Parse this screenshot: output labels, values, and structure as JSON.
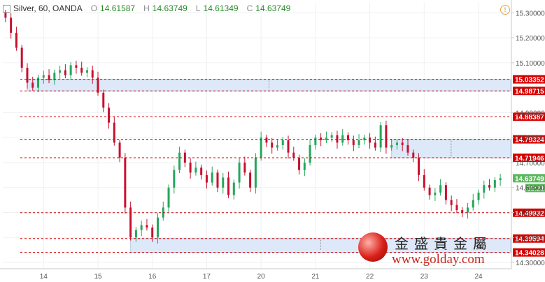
{
  "header": {
    "symbol_label": "Silver, 60, OANDA",
    "ohlc": [
      {
        "label": "O",
        "value": "14.61587"
      },
      {
        "label": "H",
        "value": "14.63749"
      },
      {
        "label": "L",
        "value": "14.61349"
      },
      {
        "label": "C",
        "value": "14.63749"
      }
    ]
  },
  "colors": {
    "up": "#26a65b",
    "down": "#c8102e",
    "level_line": "#d40000",
    "zone_fill": "#dde9f8",
    "last_price": "#5cb85c"
  },
  "watermark": {
    "chinese": "金盛貴金屬",
    "url": "www.golday.com"
  },
  "chart_data": {
    "type": "candlestick",
    "x_labels": [
      {
        "label": "14",
        "bar": 7
      },
      {
        "label": "15",
        "bar": 17
      },
      {
        "label": "16",
        "bar": 27
      },
      {
        "label": "17",
        "bar": 37
      },
      {
        "label": "20",
        "bar": 47
      },
      {
        "label": "21",
        "bar": 57
      },
      {
        "label": "22",
        "bar": 67
      },
      {
        "label": "23",
        "bar": 77
      },
      {
        "label": "24",
        "bar": 87
      }
    ],
    "ylim": [
      14.275,
      15.34
    ],
    "y_ticks": [
      "15.30000",
      "15.20000",
      "15.10000",
      "14.90000",
      "14.80000",
      "14.70000",
      "14.60000",
      "14.50000",
      "14.40000",
      "14.30000"
    ],
    "levels": [
      {
        "value": 15.03352,
        "label": "15.03352"
      },
      {
        "value": 14.98715,
        "label": "14.98715"
      },
      {
        "value": 14.88387,
        "label": "14.88387"
      },
      {
        "value": 14.79324,
        "label": "14.79324"
      },
      {
        "value": 14.71946,
        "label": "14.71946"
      },
      {
        "value": 14.49932,
        "label": "14.49932"
      },
      {
        "value": 14.39594,
        "label": "14.39594"
      },
      {
        "value": 14.34028,
        "label": "14.34028"
      }
    ],
    "zones": [
      {
        "from_bar": 4,
        "to_bar": 92,
        "top": 15.03352,
        "bottom": 14.98715
      },
      {
        "from_bar": 71,
        "to_bar": 92,
        "top": 14.79324,
        "bottom": 14.71946
      },
      {
        "from_bar": 23,
        "to_bar": 92,
        "top": 14.39594,
        "bottom": 14.34028
      }
    ],
    "last_price": {
      "value": 14.63749,
      "label": "14.63749",
      "countdown": "32:21"
    },
    "bar_count": 92,
    "closes": [
      15.28,
      15.22,
      15.16,
      15.08,
      15.02,
      15.0,
      15.04,
      15.05,
      15.03,
      15.06,
      15.07,
      15.05,
      15.09,
      15.08,
      15.06,
      15.07,
      15.04,
      14.98,
      14.92,
      14.86,
      14.78,
      14.72,
      14.52,
      14.4,
      14.43,
      14.45,
      14.44,
      14.4,
      14.48,
      14.52,
      14.6,
      14.67,
      14.74,
      14.7,
      14.66,
      14.68,
      14.65,
      14.62,
      14.66,
      14.6,
      14.64,
      14.57,
      14.62,
      14.7,
      14.66,
      14.6,
      14.72,
      14.8,
      14.78,
      14.76,
      14.77,
      14.79,
      14.74,
      14.72,
      14.67,
      14.7,
      14.77,
      14.8,
      14.79,
      14.8,
      14.81,
      14.78,
      14.81,
      14.79,
      14.77,
      14.79,
      14.8,
      14.78,
      14.76,
      14.85,
      14.76,
      14.77,
      14.78,
      14.77,
      14.74,
      14.72,
      14.65,
      14.6,
      14.57,
      14.58,
      14.61,
      14.55,
      14.53,
      14.51,
      14.5,
      14.52,
      14.55,
      14.58,
      14.61,
      14.6,
      14.63,
      14.6375
    ]
  }
}
